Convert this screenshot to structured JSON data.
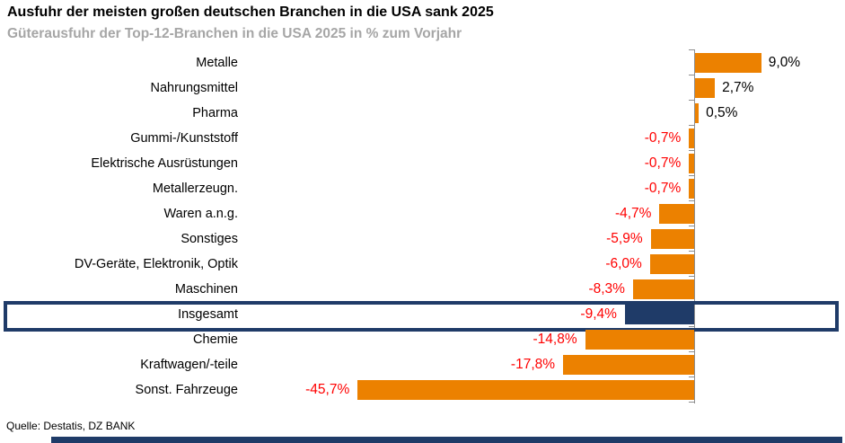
{
  "page": {
    "title": "Ausfuhr der meisten großen deutschen Branchen in die USA sank 2025",
    "subtitle": "Güterausfuhr der Top-12-Branchen in die USA 2025 in % zum Vorjahr",
    "source": "Quelle: Destatis, DZ BANK"
  },
  "chart_data": {
    "type": "bar",
    "orientation": "horizontal",
    "title": "Ausfuhr der meisten großen deutschen Branchen in die USA sank 2025",
    "subtitle": "Güterausfuhr der Top-12-Branchen in die USA 2025 in % zum Vorjahr",
    "categories": [
      "Metalle",
      "Nahrungsmittel",
      "Pharma",
      "Gummi-/Kunststoff",
      "Elektrische Ausrüstungen",
      "Metallerzeugn.",
      "Waren a.n.g.",
      "Sonstiges",
      "DV-Geräte, Elektronik, Optik",
      "Maschinen",
      "Insgesamt",
      "Chemie",
      "Kraftwagen/-teile",
      "Sonst. Fahrzeuge"
    ],
    "values": [
      9.0,
      2.7,
      0.5,
      -0.7,
      -0.7,
      -0.7,
      -4.7,
      -5.9,
      -6.0,
      -8.3,
      -9.4,
      -14.8,
      -17.8,
      -45.7
    ],
    "value_labels": [
      "9,0%",
      "2,7%",
      "0,5%",
      "-0,7%",
      "-0,7%",
      "-0,7%",
      "-4,7%",
      "-5,9%",
      "-6,0%",
      "-8,3%",
      "-9,4%",
      "-14,8%",
      "-17,8%",
      "-45,7%"
    ],
    "highlight_category": "Insgesamt",
    "highlight_index": 10,
    "xlim": [
      -50,
      12
    ],
    "grid": false,
    "legend": false,
    "xlabel": "",
    "ylabel": "",
    "colors": {
      "bar": "#EC8100",
      "highlight_bar": "#1F3B68",
      "highlight_box_border": "#1F3B68",
      "positive_label": "#000000",
      "negative_label": "#FF0000",
      "axis": "#8E8E8E",
      "subtitle_text": "#A6A6A6",
      "footer_bar": "#1F3B68"
    }
  }
}
